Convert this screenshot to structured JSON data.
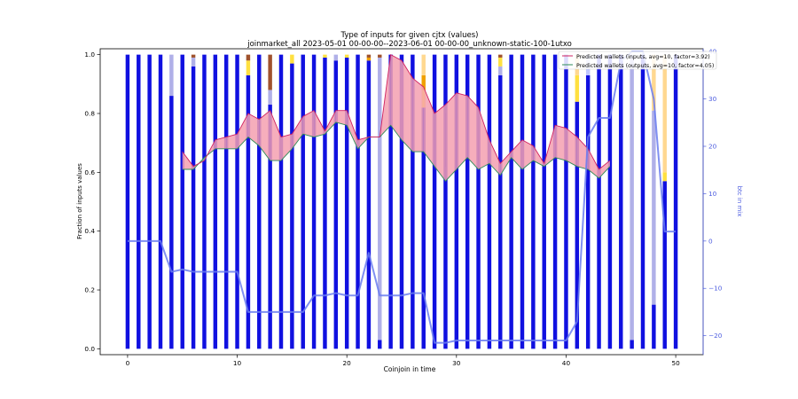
{
  "chart_data": {
    "type": "bar",
    "title": "Type of inputs for given cjtx (values)",
    "subtitle": "joinmarket_all 2023-05-01 00-00-00--2023-06-01 00-00-00_unknown-static-100-1utxo",
    "xlabel": "Coinjoin in time",
    "ylabel": "Fraction of inputs values",
    "y2label": "btc in mix",
    "xlim": [
      -2.5,
      52.5
    ],
    "ylim": [
      -0.02,
      1.02
    ],
    "y2lim": [
      -24,
      40.6
    ],
    "xticks": [
      0,
      10,
      20,
      30,
      40,
      50
    ],
    "yticks": [
      0.0,
      0.2,
      0.4,
      0.6,
      0.8,
      1.0
    ],
    "y2ticks": [
      -20,
      -10,
      0,
      10,
      20,
      30,
      40
    ],
    "legend_position": "top-right",
    "colors": {
      "main": "#1010e0",
      "light": "#b0b0e8",
      "yellow": "#ffe040",
      "orange": "#f0a000",
      "brown": "#a0522d",
      "peach": "#ffd890",
      "lightblue": "#c0c8ff",
      "fill_area": "#f4a0b0",
      "inputs_line": "#d02060",
      "outputs_line": "#2e8b57",
      "outputs_fill": "#88d0a0",
      "btc_line": "#6a7df0"
    },
    "stack_order": [
      "main",
      "light",
      "yellow",
      "orange",
      "brown",
      "peach",
      "lightblue"
    ],
    "bars": [
      {
        "x": 0,
        "main": 1.0
      },
      {
        "x": 1,
        "main": 1.0
      },
      {
        "x": 2,
        "main": 1.0
      },
      {
        "x": 3,
        "main": 1.0
      },
      {
        "x": 4,
        "main": 0.86,
        "light": 0.14
      },
      {
        "x": 5,
        "main": 1.0
      },
      {
        "x": 6,
        "main": 0.96,
        "light": 0.03,
        "brown": 0.01
      },
      {
        "x": 7,
        "main": 1.0
      },
      {
        "x": 8,
        "main": 1.0
      },
      {
        "x": 9,
        "main": 1.0
      },
      {
        "x": 10,
        "main": 1.0
      },
      {
        "x": 11,
        "main": 0.93,
        "yellow": 0.05,
        "brown": 0.02
      },
      {
        "x": 12,
        "main": 1.0
      },
      {
        "x": 13,
        "main": 0.83,
        "light": 0.05,
        "brown": 0.12
      },
      {
        "x": 14,
        "main": 1.0
      },
      {
        "x": 15,
        "main": 0.97,
        "yellow": 0.03
      },
      {
        "x": 16,
        "main": 1.0
      },
      {
        "x": 17,
        "main": 1.0
      },
      {
        "x": 18,
        "main": 0.99,
        "yellow": 0.01
      },
      {
        "x": 19,
        "main": 0.98,
        "light": 0.02
      },
      {
        "x": 20,
        "main": 0.99,
        "yellow": 0.01
      },
      {
        "x": 21,
        "main": 1.0
      },
      {
        "x": 22,
        "main": 0.98,
        "orange": 0.01,
        "brown": 0.01
      },
      {
        "x": 23,
        "main": 0.03,
        "light": 0.96,
        "brown": 0.01
      },
      {
        "x": 24,
        "main": 1.0
      },
      {
        "x": 25,
        "main": 1.0
      },
      {
        "x": 26,
        "main": 1.0
      },
      {
        "x": 27,
        "main": 0.82,
        "orange": 0.05,
        "yellow": 0.06,
        "peach": 0.07
      },
      {
        "x": 28,
        "main": 1.0
      },
      {
        "x": 29,
        "main": 1.0
      },
      {
        "x": 30,
        "main": 1.0
      },
      {
        "x": 31,
        "main": 1.0
      },
      {
        "x": 32,
        "main": 1.0
      },
      {
        "x": 33,
        "main": 1.0
      },
      {
        "x": 34,
        "main": 0.93,
        "light": 0.03,
        "yellow": 0.03,
        "brown": 0.01
      },
      {
        "x": 35,
        "main": 1.0
      },
      {
        "x": 36,
        "main": 1.0
      },
      {
        "x": 37,
        "main": 1.0
      },
      {
        "x": 38,
        "main": 1.0
      },
      {
        "x": 39,
        "main": 1.0
      },
      {
        "x": 40,
        "main": 1.0
      },
      {
        "x": 41,
        "main": 0.84,
        "yellow": 0.09,
        "peach": 0.07
      },
      {
        "x": 42,
        "main": 0.93,
        "lightblue": 0.07
      },
      {
        "x": 43,
        "main": 1.0
      },
      {
        "x": 44,
        "main": 1.0
      },
      {
        "x": 45,
        "main": 1.0
      },
      {
        "x": 46,
        "main": 0.03,
        "light": 0.97
      },
      {
        "x": 47,
        "main": 1.0
      },
      {
        "x": 48,
        "main": 0.15,
        "light": 0.66,
        "peach": 0.19
      },
      {
        "x": 49,
        "main": 0.57,
        "yellow": 0.03,
        "peach": 0.4
      },
      {
        "x": 50,
        "main": 1.0
      }
    ],
    "series": [
      {
        "name": "Predicted wallets (inputs, avg=10, factor=3.92)",
        "x": [
          5,
          6,
          7,
          8,
          9,
          10,
          11,
          12,
          13,
          14,
          15,
          16,
          17,
          18,
          19,
          20,
          21,
          22,
          23,
          24,
          25,
          26,
          27,
          28,
          29,
          30,
          31,
          32,
          33,
          34,
          35,
          36,
          37,
          38,
          39,
          40,
          41,
          42,
          43,
          44
        ],
        "values": [
          0.67,
          0.62,
          0.64,
          0.71,
          0.72,
          0.73,
          0.8,
          0.78,
          0.81,
          0.72,
          0.73,
          0.79,
          0.81,
          0.74,
          0.81,
          0.81,
          0.71,
          0.72,
          0.72,
          1.0,
          0.98,
          0.92,
          0.89,
          0.8,
          0.83,
          0.87,
          0.86,
          0.82,
          0.71,
          0.63,
          0.67,
          0.71,
          0.69,
          0.63,
          0.76,
          0.75,
          0.72,
          0.68,
          0.61,
          0.64
        ]
      },
      {
        "name": "Predicted wallets (outputs, avg=10, factor=4.05)",
        "x": [
          5,
          6,
          7,
          8,
          9,
          10,
          11,
          12,
          13,
          14,
          15,
          16,
          17,
          18,
          19,
          20,
          21,
          22,
          23,
          24,
          25,
          26,
          27,
          28,
          29,
          30,
          31,
          32,
          33,
          34,
          35,
          36,
          37,
          38,
          39,
          40,
          41,
          42,
          43,
          44
        ],
        "values": [
          0.61,
          0.61,
          0.65,
          0.68,
          0.68,
          0.68,
          0.72,
          0.69,
          0.64,
          0.64,
          0.68,
          0.73,
          0.72,
          0.73,
          0.77,
          0.76,
          0.68,
          0.72,
          0.72,
          0.76,
          0.71,
          0.67,
          0.67,
          0.62,
          0.57,
          0.61,
          0.65,
          0.61,
          0.63,
          0.59,
          0.65,
          0.61,
          0.64,
          0.62,
          0.65,
          0.64,
          0.62,
          0.61,
          0.58,
          0.62
        ]
      },
      {
        "name": "btc in mix",
        "axis": "right",
        "x": [
          0,
          1,
          2,
          3,
          4,
          5,
          6,
          7,
          8,
          9,
          10,
          11,
          12,
          13,
          14,
          15,
          16,
          17,
          18,
          19,
          20,
          21,
          22,
          23,
          24,
          25,
          26,
          27,
          28,
          29,
          30,
          31,
          32,
          33,
          34,
          35,
          36,
          37,
          38,
          39,
          40,
          41,
          42,
          43,
          44,
          45,
          46,
          47,
          48,
          49,
          50
        ],
        "values": [
          0,
          0,
          0,
          0,
          -6.5,
          -6,
          -6.5,
          -6.5,
          -6.5,
          -6.5,
          -6.5,
          -15,
          -15,
          -15,
          -15,
          -15,
          -15,
          -11.5,
          -11.5,
          -11,
          -11.5,
          -11.5,
          -2.5,
          -11.5,
          -11.5,
          -11.5,
          -11,
          -11,
          -21.5,
          -21.5,
          -21,
          -21,
          -21,
          -21,
          -21,
          -21,
          -21,
          -21,
          -21,
          -21,
          -21,
          -17,
          22,
          26,
          26,
          38,
          40,
          40,
          30,
          2,
          2
        ]
      }
    ]
  }
}
